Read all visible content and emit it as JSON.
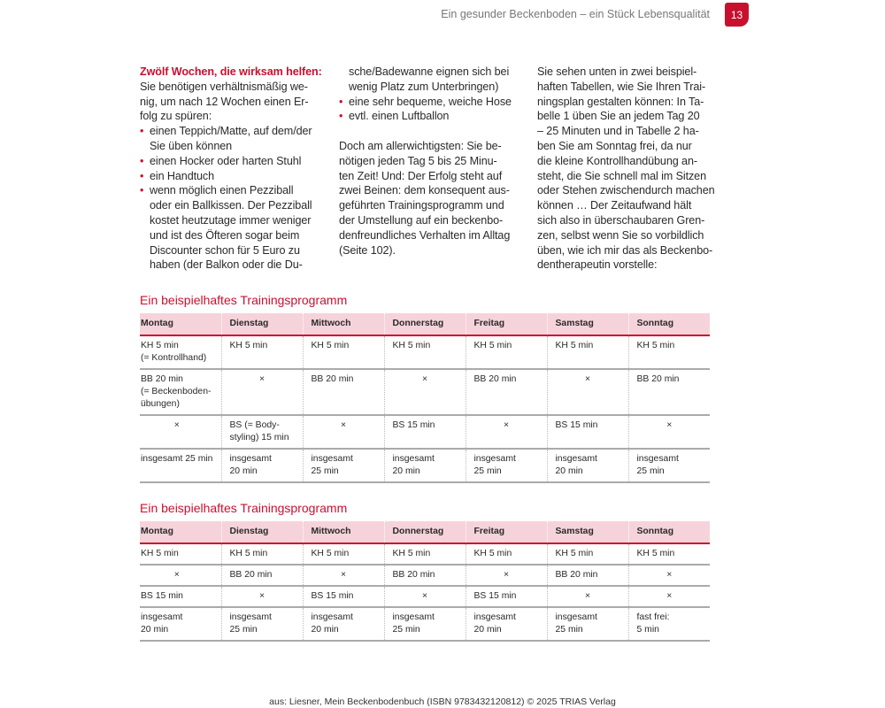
{
  "header": {
    "running_title": "Ein gesunder Beckenboden – ein Stück Lebensqualität",
    "page_number": "13",
    "accent_color": "#c8102e"
  },
  "columns": [
    [
      {
        "t": "Zwölf Wochen, die wirksam helfen:",
        "k": "head"
      },
      {
        "t": "Sie benötigen verhältnismäßig we-"
      },
      {
        "t": "nig, um nach 12 Wochen einen Er-"
      },
      {
        "t": "folg zu spüren:"
      },
      {
        "t": "einen Teppich/Matte, auf dem/der",
        "k": "bullet"
      },
      {
        "t": "Sie üben können",
        "k": "indent"
      },
      {
        "t": "einen Hocker oder harten Stuhl",
        "k": "bullet"
      },
      {
        "t": "ein Handtuch",
        "k": "bullet"
      },
      {
        "t": "wenn möglich einen Pezziball",
        "k": "bullet"
      },
      {
        "t": "oder ein Ballkissen. Der Pezziball",
        "k": "indent"
      },
      {
        "t": "kostet heutzutage immer weniger",
        "k": "indent"
      },
      {
        "t": "und ist des Öfteren sogar beim",
        "k": "indent"
      },
      {
        "t": "Discounter schon für 5 Euro zu",
        "k": "indent"
      },
      {
        "t": "haben (der Balkon oder die Du-",
        "k": "indent"
      }
    ],
    [
      {
        "t": "sche/Badewanne eignen sich bei",
        "k": "indent"
      },
      {
        "t": "wenig Platz zum Unterbringen)",
        "k": "indent"
      },
      {
        "t": "eine sehr bequeme, weiche Hose",
        "k": "bullet"
      },
      {
        "t": "evtl. einen Luftballon",
        "k": "bullet"
      },
      {
        "t": ""
      },
      {
        "t": "Doch am allerwichtigsten: Sie be-"
      },
      {
        "t": "nötigen jeden Tag 5 bis 25 Minu-"
      },
      {
        "t": "ten Zeit! Und: Der Erfolg steht auf"
      },
      {
        "t": "zwei Beinen: dem konsequent aus-"
      },
      {
        "t": "geführten Trainingsprogramm und"
      },
      {
        "t": "der Umstellung auf ein beckenbo-"
      },
      {
        "t": "denfreundliches Verhalten im Alltag"
      },
      {
        "t": "(Seite 102)."
      }
    ],
    [
      {
        "t": "Sie sehen unten in zwei beispiel-"
      },
      {
        "t": "haften Tabellen, wie Sie Ihren Trai-"
      },
      {
        "t": "ningsplan gestalten können: In Ta-"
      },
      {
        "t": "belle 1 üben Sie an jedem Tag 20"
      },
      {
        "t": "– 25 Minuten und in Tabelle 2 ha-"
      },
      {
        "t": "ben Sie am Sonntag frei, da nur"
      },
      {
        "t": "die kleine Kontrollhandübung an-"
      },
      {
        "t": "steht, die Sie schnell mal im Sitzen"
      },
      {
        "t": "oder Stehen zwischendurch machen"
      },
      {
        "t": "können … Der Zeitaufwand hält"
      },
      {
        "t": "sich also in überschaubaren Gren-"
      },
      {
        "t": "zen, selbst wenn Sie so vorbildlich"
      },
      {
        "t": "üben, wie ich mir das als Beckenbo-"
      },
      {
        "t": "dentherapeutin vorstelle:"
      }
    ]
  ],
  "tables": [
    {
      "title": "Ein beispielhaftes Trainingsprogramm",
      "headers": [
        "Montag",
        "Dienstag",
        "Mittwoch",
        "Donnerstag",
        "Freitag",
        "Samstag",
        "Sonntag"
      ],
      "rows": [
        [
          "KH 5 min\n(= Kontrollhand)",
          "KH 5 min",
          "KH 5 min",
          "KH 5 min",
          "KH 5 min",
          "KH 5 min",
          "KH 5 min"
        ],
        [
          "BB 20 min\n(= Beckenboden-\nübungen)",
          "×",
          "BB 20 min",
          "×",
          "BB 20 min",
          "×",
          "BB 20 min"
        ],
        [
          "×",
          "BS (= Body-\nstyling) 15 min",
          "×",
          "BS 15 min",
          "×",
          "BS 15 min",
          "×"
        ],
        [
          "insgesamt 25 min",
          "insgesamt\n20 min",
          "insgesamt\n25 min",
          "insgesamt\n20 min",
          "insgesamt\n25 min",
          "insgesamt\n20 min",
          "insgesamt\n25 min"
        ]
      ]
    },
    {
      "title": "Ein beispielhaftes Trainingsprogramm",
      "headers": [
        "Montag",
        "Dienstag",
        "Mittwoch",
        "Donnerstag",
        "Freitag",
        "Samstag",
        "Sonntag"
      ],
      "rows": [
        [
          "KH 5 min",
          "KH 5 min",
          "KH 5 min",
          "KH 5 min",
          "KH 5 min",
          "KH 5 min",
          "KH 5 min"
        ],
        [
          "×",
          "BB 20 min",
          "×",
          "BB 20 min",
          "×",
          "BB 20 min",
          "×"
        ],
        [
          "BS 15 min",
          "×",
          "BS 15 min",
          "×",
          "BS 15 min",
          "×",
          "×"
        ],
        [
          "insgesamt\n20 min",
          "insgesamt\n25 min",
          "insgesamt\n20 min",
          "insgesamt\n25 min",
          "insgesamt\n20 min",
          "insgesamt\n25 min",
          "fast frei:\n5 min"
        ]
      ]
    }
  ],
  "footer": {
    "credit": "aus: Liesner, Mein Beckenbodenbuch (ISBN 9783432120812) © 2025 TRIAS Verlag"
  }
}
